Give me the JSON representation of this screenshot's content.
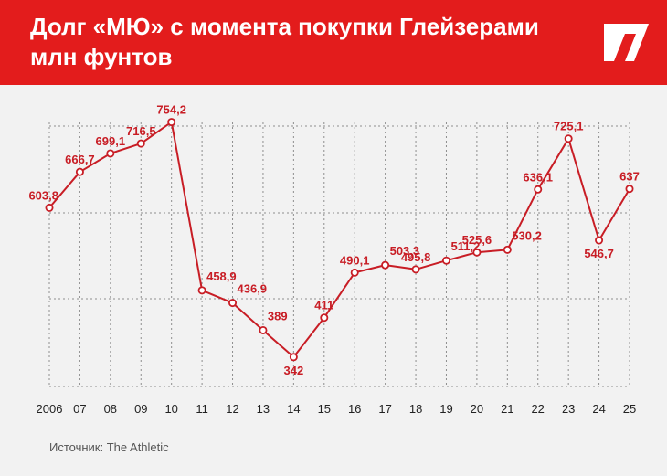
{
  "header": {
    "title": "Долг «МЮ» с момента покупки Глейзерами",
    "subtitle": "млн фунтов",
    "logo": "the-athletic-logo"
  },
  "source": "Источник: The Athletic",
  "colors": {
    "accent": "#e31c1c",
    "line": "#c81d25",
    "label": "#c81d25",
    "grid": "#8e8e8e",
    "background": "#f2f2f2"
  },
  "chart_data": {
    "type": "line",
    "title": "Долг «МЮ» с момента покупки Глейзерами",
    "ylabel": "млн фунтов",
    "xlabel": "",
    "categories": [
      "2006",
      "07",
      "08",
      "09",
      "10",
      "11",
      "12",
      "13",
      "14",
      "15",
      "16",
      "17",
      "18",
      "19",
      "20",
      "21",
      "22",
      "23",
      "24",
      "25"
    ],
    "values": [
      603.8,
      666.7,
      699.1,
      716.5,
      754.2,
      458.9,
      436.9,
      389,
      342,
      411,
      490.1,
      503.3,
      495.8,
      511.2,
      525.6,
      530.2,
      636.1,
      725.1,
      546.7,
      637
    ],
    "labels": [
      "603,8",
      "666,7",
      "699,1",
      "716,5",
      "754,2",
      "458,9",
      "436,9",
      "389",
      "342",
      "411",
      "490,1",
      "503,3",
      "495,8",
      "511,2",
      "525,6",
      "530,2",
      "636,1",
      "725,1",
      "546,7",
      "637"
    ],
    "label_positions": [
      "left",
      "above",
      "above",
      "above",
      "above",
      "right",
      "right",
      "right",
      "below",
      "above",
      "above",
      "right",
      "above",
      "right",
      "above",
      "right",
      "above",
      "above",
      "below",
      "above"
    ],
    "ylim": [
      300,
      800
    ],
    "grid": true
  }
}
